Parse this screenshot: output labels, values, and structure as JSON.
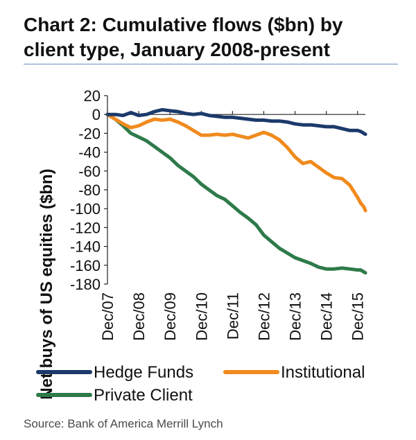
{
  "title": "Chart 2: Cumulative flows ($bn) by client type, January 2008-present",
  "source": "Source: Bank of America Merrill Lynch",
  "colors": {
    "hedge_funds": "#1b3a6b",
    "institutional": "#f08a1e",
    "private_client": "#2e7a4a"
  },
  "chart_data": {
    "type": "line",
    "title": "Chart 2: Cumulative flows ($bn) by client type, January 2008-present",
    "xlabel": "",
    "ylabel": "Net buys of US equities ($bn)",
    "ylim": [
      -180,
      20
    ],
    "yticks": [
      20,
      0,
      -20,
      -40,
      -60,
      -80,
      -100,
      -120,
      -140,
      -160,
      -180
    ],
    "xlim": [
      "2008-01",
      "2016-04"
    ],
    "xticks": [
      "Dec/07",
      "Dec/08",
      "Dec/09",
      "Dec/10",
      "Dec/11",
      "Dec/12",
      "Dec/13",
      "Dec/14",
      "Dec/15"
    ],
    "legend_position": "bottom",
    "grid": false,
    "series": [
      {
        "name": "Hedge Funds",
        "color": "#1b3a6b",
        "points": [
          [
            0,
            0
          ],
          [
            0.25,
            0
          ],
          [
            0.5,
            -1
          ],
          [
            0.75,
            2
          ],
          [
            1.0,
            -1
          ],
          [
            1.25,
            0
          ],
          [
            1.5,
            3
          ],
          [
            1.75,
            5
          ],
          [
            2.0,
            4
          ],
          [
            2.25,
            3
          ],
          [
            2.5,
            1
          ],
          [
            2.75,
            0
          ],
          [
            3.0,
            1
          ],
          [
            3.25,
            -1
          ],
          [
            3.5,
            -2
          ],
          [
            3.75,
            -3
          ],
          [
            4.0,
            -3
          ],
          [
            4.25,
            -4
          ],
          [
            4.5,
            -5
          ],
          [
            4.75,
            -6
          ],
          [
            5.0,
            -6
          ],
          [
            5.25,
            -7
          ],
          [
            5.5,
            -7
          ],
          [
            5.75,
            -8
          ],
          [
            6.0,
            -10
          ],
          [
            6.25,
            -11
          ],
          [
            6.5,
            -11
          ],
          [
            6.75,
            -12
          ],
          [
            7.0,
            -13
          ],
          [
            7.25,
            -13
          ],
          [
            7.5,
            -15
          ],
          [
            7.75,
            -17
          ],
          [
            8.0,
            -17
          ],
          [
            8.1,
            -18
          ],
          [
            8.2,
            -20
          ],
          [
            8.25,
            -21
          ]
        ]
      },
      {
        "name": "Institutional",
        "color": "#f08a1e",
        "points": [
          [
            0,
            0
          ],
          [
            0.25,
            -5
          ],
          [
            0.5,
            -10
          ],
          [
            0.75,
            -14
          ],
          [
            1.0,
            -12
          ],
          [
            1.25,
            -8
          ],
          [
            1.5,
            -5
          ],
          [
            1.75,
            -6
          ],
          [
            2.0,
            -5
          ],
          [
            2.25,
            -8
          ],
          [
            2.5,
            -12
          ],
          [
            2.75,
            -17
          ],
          [
            3.0,
            -22
          ],
          [
            3.25,
            -22
          ],
          [
            3.5,
            -21
          ],
          [
            3.75,
            -22
          ],
          [
            4.0,
            -21
          ],
          [
            4.25,
            -23
          ],
          [
            4.5,
            -25
          ],
          [
            4.75,
            -22
          ],
          [
            5.0,
            -19
          ],
          [
            5.25,
            -22
          ],
          [
            5.5,
            -27
          ],
          [
            5.75,
            -35
          ],
          [
            6.0,
            -45
          ],
          [
            6.25,
            -52
          ],
          [
            6.5,
            -50
          ],
          [
            6.75,
            -56
          ],
          [
            7.0,
            -62
          ],
          [
            7.25,
            -67
          ],
          [
            7.5,
            -68
          ],
          [
            7.75,
            -75
          ],
          [
            8.0,
            -88
          ],
          [
            8.1,
            -94
          ],
          [
            8.2,
            -98
          ],
          [
            8.25,
            -102
          ]
        ]
      },
      {
        "name": "Private Client",
        "color": "#2e7a4a",
        "points": [
          [
            0,
            0
          ],
          [
            0.25,
            -5
          ],
          [
            0.5,
            -12
          ],
          [
            0.75,
            -20
          ],
          [
            1.0,
            -24
          ],
          [
            1.25,
            -28
          ],
          [
            1.5,
            -34
          ],
          [
            1.75,
            -40
          ],
          [
            2.0,
            -46
          ],
          [
            2.25,
            -54
          ],
          [
            2.5,
            -60
          ],
          [
            2.75,
            -66
          ],
          [
            3.0,
            -74
          ],
          [
            3.25,
            -80
          ],
          [
            3.5,
            -86
          ],
          [
            3.75,
            -90
          ],
          [
            4.0,
            -97
          ],
          [
            4.25,
            -104
          ],
          [
            4.5,
            -110
          ],
          [
            4.75,
            -117
          ],
          [
            5.0,
            -128
          ],
          [
            5.25,
            -135
          ],
          [
            5.5,
            -142
          ],
          [
            5.75,
            -147
          ],
          [
            6.0,
            -152
          ],
          [
            6.25,
            -155
          ],
          [
            6.5,
            -158
          ],
          [
            6.75,
            -162
          ],
          [
            7.0,
            -164
          ],
          [
            7.25,
            -164
          ],
          [
            7.5,
            -163
          ],
          [
            7.75,
            -164
          ],
          [
            8.0,
            -165
          ],
          [
            8.1,
            -165
          ],
          [
            8.2,
            -167
          ],
          [
            8.25,
            -168
          ]
        ]
      }
    ]
  }
}
